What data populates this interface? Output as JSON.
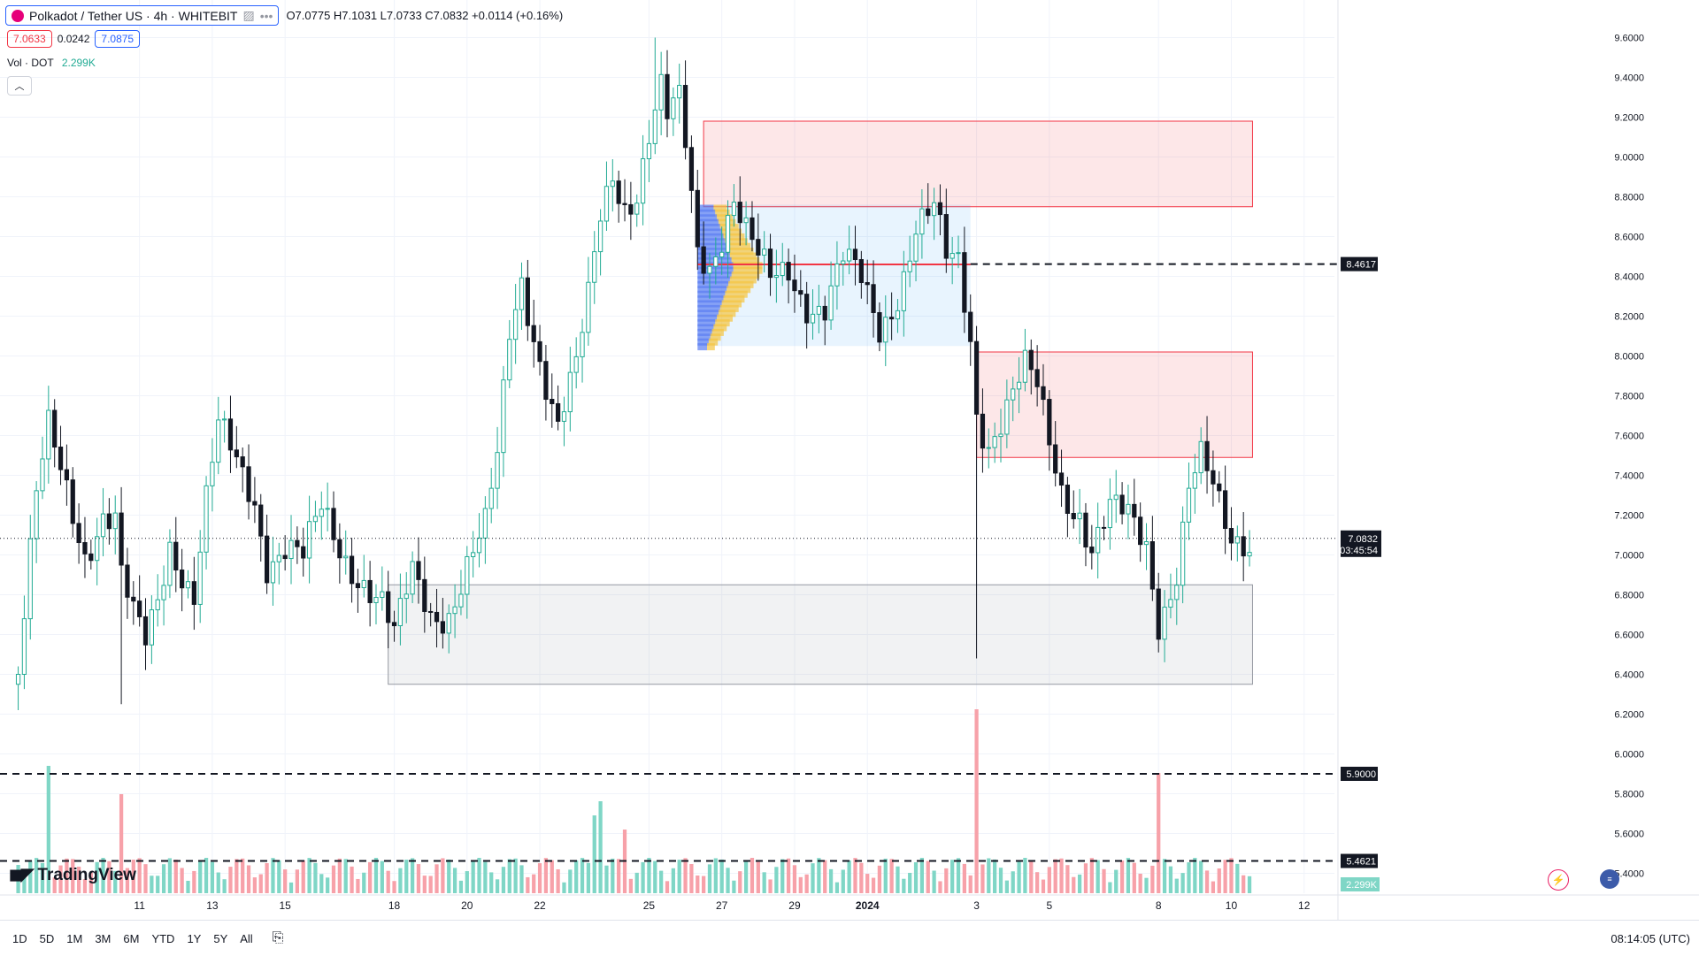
{
  "header": {
    "symbol_title": "Polkadot / Tether US · 4h · WHITEBIT",
    "ohlc_text": "O7.0775  H7.1031  L7.0733  C7.0832  +0.0114 (+0.16%)",
    "bid": "7.0633",
    "spread": "0.0242",
    "ask": "7.0875",
    "vol_label": "Vol · DOT",
    "vol_value": "2.299K"
  },
  "branding": {
    "logo_text": "TradingView"
  },
  "bottom_bar": {
    "ranges": [
      "1D",
      "5D",
      "1M",
      "3M",
      "6M",
      "YTD",
      "1Y",
      "5Y",
      "All"
    ],
    "clock": "08:14:05 (UTC)"
  },
  "colors": {
    "up": "#22ab94",
    "down": "#131722",
    "vol_up": "#7fd6c6",
    "vol_down": "#f7a1a9",
    "supply_zone": "#f23645",
    "demand_zone": "#9598a1",
    "vp_zone": "#bfe3f7"
  },
  "chart_data": {
    "type": "candlestick",
    "title": "Polkadot / Tether US · 4h · WHITEBIT",
    "ylim": [
      5.3,
      9.7
    ],
    "y_ticks": [
      "9.6000",
      "9.4000",
      "9.2000",
      "9.0000",
      "8.8000",
      "8.6000",
      "8.4000",
      "8.2000",
      "8.0000",
      "7.8000",
      "7.6000",
      "7.4000",
      "7.2000",
      "7.0000",
      "6.8000",
      "6.6000",
      "6.4000",
      "6.2000",
      "6.0000",
      "5.8000",
      "5.6000",
      "5.4000"
    ],
    "x_ticks": [
      {
        "label": "11",
        "t": 20
      },
      {
        "label": "13",
        "t": 32
      },
      {
        "label": "15",
        "t": 44
      },
      {
        "label": "18",
        "t": 62
      },
      {
        "label": "20",
        "t": 74
      },
      {
        "label": "22",
        "t": 86
      },
      {
        "label": "25",
        "t": 104
      },
      {
        "label": "27",
        "t": 116
      },
      {
        "label": "29",
        "t": 128
      },
      {
        "label": "2024",
        "t": 140
      },
      {
        "label": "3",
        "t": 158
      },
      {
        "label": "5",
        "t": 170
      },
      {
        "label": "8",
        "t": 188
      },
      {
        "label": "10",
        "t": 200
      },
      {
        "label": "12",
        "t": 212
      }
    ],
    "t_range": [
      -3,
      217
    ],
    "anchors": [
      {
        "t": 0,
        "c": 6.4
      },
      {
        "t": 3,
        "c": 7.25
      },
      {
        "t": 5,
        "c": 7.6
      },
      {
        "t": 8,
        "c": 7.35
      },
      {
        "t": 11,
        "c": 7.05
      },
      {
        "t": 14,
        "c": 7.2
      },
      {
        "t": 16,
        "c": 7.15
      },
      {
        "t": 17,
        "c": 6.85
      },
      {
        "t": 19,
        "c": 6.65
      },
      {
        "t": 21,
        "c": 6.55
      },
      {
        "t": 23,
        "c": 6.8
      },
      {
        "t": 25,
        "c": 7.1
      },
      {
        "t": 27,
        "c": 6.95
      },
      {
        "t": 29,
        "c": 6.8
      },
      {
        "t": 31,
        "c": 7.25
      },
      {
        "t": 33,
        "c": 7.6
      },
      {
        "t": 36,
        "c": 7.45
      },
      {
        "t": 39,
        "c": 7.3
      },
      {
        "t": 41,
        "c": 7.0
      },
      {
        "t": 44,
        "c": 7.05
      },
      {
        "t": 47,
        "c": 6.95
      },
      {
        "t": 50,
        "c": 7.2
      },
      {
        "t": 53,
        "c": 7.05
      },
      {
        "t": 57,
        "c": 6.9
      },
      {
        "t": 60,
        "c": 6.75
      },
      {
        "t": 62,
        "c": 6.55
      },
      {
        "t": 65,
        "c": 6.88
      },
      {
        "t": 68,
        "c": 6.72
      },
      {
        "t": 71,
        "c": 6.75
      },
      {
        "t": 74,
        "c": 6.95
      },
      {
        "t": 77,
        "c": 7.1
      },
      {
        "t": 79,
        "c": 7.45
      },
      {
        "t": 81,
        "c": 8.1
      },
      {
        "t": 83,
        "c": 8.4
      },
      {
        "t": 85,
        "c": 8.15
      },
      {
        "t": 87,
        "c": 7.9
      },
      {
        "t": 89,
        "c": 7.65
      },
      {
        "t": 92,
        "c": 7.9
      },
      {
        "t": 94,
        "c": 8.25
      },
      {
        "t": 96,
        "c": 8.7
      },
      {
        "t": 98,
        "c": 8.95
      },
      {
        "t": 100,
        "c": 8.8
      },
      {
        "t": 102,
        "c": 8.85
      },
      {
        "t": 104,
        "c": 9.1
      },
      {
        "t": 106,
        "c": 9.3
      },
      {
        "t": 107,
        "c": 9.15
      },
      {
        "t": 109,
        "c": 9.25
      },
      {
        "t": 110,
        "c": 9.05
      },
      {
        "t": 112,
        "c": 8.55
      },
      {
        "t": 114,
        "c": 8.5
      },
      {
        "t": 116,
        "c": 8.65
      },
      {
        "t": 118,
        "c": 8.8
      },
      {
        "t": 120,
        "c": 8.6
      },
      {
        "t": 122,
        "c": 8.45
      },
      {
        "t": 124,
        "c": 8.35
      },
      {
        "t": 127,
        "c": 8.45
      },
      {
        "t": 130,
        "c": 8.3
      },
      {
        "t": 133,
        "c": 8.25
      },
      {
        "t": 136,
        "c": 8.45
      },
      {
        "t": 139,
        "c": 8.35
      },
      {
        "t": 142,
        "c": 8.15
      },
      {
        "t": 145,
        "c": 8.35
      },
      {
        "t": 148,
        "c": 8.65
      },
      {
        "t": 151,
        "c": 8.7
      },
      {
        "t": 153,
        "c": 8.45
      },
      {
        "t": 155,
        "c": 8.45
      },
      {
        "t": 157,
        "c": 8.1
      },
      {
        "t": 158,
        "c": 7.75
      },
      {
        "t": 160,
        "c": 7.6
      },
      {
        "t": 163,
        "c": 7.75
      },
      {
        "t": 166,
        "c": 7.9
      },
      {
        "t": 168,
        "c": 7.8
      },
      {
        "t": 170,
        "c": 7.55
      },
      {
        "t": 172,
        "c": 7.35
      },
      {
        "t": 175,
        "c": 7.25
      },
      {
        "t": 177,
        "c": 7.05
      },
      {
        "t": 180,
        "c": 7.2
      },
      {
        "t": 183,
        "c": 7.15
      },
      {
        "t": 186,
        "c": 7.05
      },
      {
        "t": 188,
        "c": 6.7
      },
      {
        "t": 191,
        "c": 6.95
      },
      {
        "t": 193,
        "c": 7.35
      },
      {
        "t": 195,
        "c": 7.45
      },
      {
        "t": 198,
        "c": 7.2
      },
      {
        "t": 200,
        "c": 7.05
      },
      {
        "t": 202,
        "c": 7.1
      },
      {
        "t": 203,
        "c": 7.0832
      }
    ],
    "spikes": [
      {
        "t": 105,
        "h": 9.6
      },
      {
        "t": 158,
        "l": 6.48,
        "vol": 2.6
      },
      {
        "t": 17,
        "l": 6.25
      },
      {
        "t": 188,
        "l": 6.51,
        "vol": 1.7
      },
      {
        "t": 0,
        "vol": 0.4
      },
      {
        "t": 5,
        "vol": 1.8
      },
      {
        "t": 17,
        "vol": 1.4
      },
      {
        "t": 96,
        "vol": 1.3
      },
      {
        "t": 95,
        "vol": 1.1
      },
      {
        "t": 100,
        "vol": 0.9
      }
    ],
    "zones": [
      {
        "name": "supply-zone-upper",
        "t0": 113,
        "t1": 203.5,
        "top": 9.18,
        "bottom": 8.75,
        "kind": "supply"
      },
      {
        "name": "supply-zone-lower",
        "t0": 158,
        "t1": 203.5,
        "top": 8.02,
        "bottom": 7.49,
        "kind": "supply"
      },
      {
        "name": "demand-zone",
        "t0": 61,
        "t1": 203.5,
        "top": 6.85,
        "bottom": 6.35,
        "kind": "demand"
      },
      {
        "name": "volume-profile-zone",
        "t0": 112,
        "t1": 157,
        "top": 8.76,
        "bottom": 8.05,
        "kind": "vp"
      }
    ],
    "poc": {
      "t0": 112,
      "t1": 157,
      "price": 8.46
    },
    "levels": [
      {
        "price": 8.4617,
        "label": "8.4617",
        "t_start": 157
      },
      {
        "price": 5.9,
        "label": "5.9000",
        "t_start": -3
      },
      {
        "price": 5.4621,
        "label": "5.4621",
        "t_start": -3
      }
    ],
    "last_price": {
      "price": 7.0832,
      "label": "7.0832",
      "countdown": "03:45:54"
    },
    "volume_label": "2.299K"
  }
}
